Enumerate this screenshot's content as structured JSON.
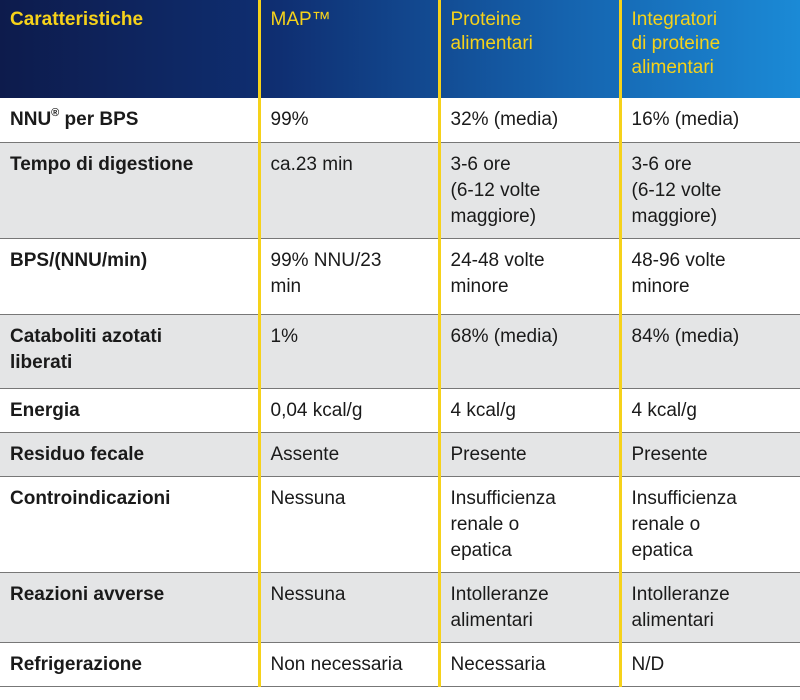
{
  "header": {
    "col1": "Caratteristiche",
    "col2": "MAP™",
    "col3": "Proteine\nalimentari",
    "col4": "Integratori\ndi proteine\nalimentari"
  },
  "rows": [
    {
      "label_main": "NNU",
      "label_sup": "®",
      "label_rest": " per BPS",
      "map": "99%",
      "proteine": "32% (media)",
      "integratori": "16% (media)"
    },
    {
      "label": "Tempo di digestione",
      "map": "ca.23 min",
      "proteine": "3-6 ore\n(6-12 volte\nmaggiore)",
      "integratori": "3-6 ore\n(6-12 volte\nmaggiore)"
    },
    {
      "label": "BPS/(NNU/min)",
      "map": "99% NNU/23\nmin",
      "proteine": "24-48 volte\nminore",
      "integratori": "48-96 volte\nminore"
    },
    {
      "label": "Cataboliti azotati\nliberati",
      "map": "1%",
      "proteine": "68% (media)",
      "integratori": "84% (media)"
    },
    {
      "label": "Energia",
      "map": "0,04 kcal/g",
      "proteine": "4 kcal/g",
      "integratori": "4 kcal/g"
    },
    {
      "label": "Residuo fecale",
      "map": "Assente",
      "proteine": "Presente",
      "integratori": "Presente"
    },
    {
      "label": "Controindicazioni",
      "map": "Nessuna",
      "proteine": "Insufficienza\nrenale o\nepatica",
      "integratori": "Insufficienza\nrenale o\nepatica"
    },
    {
      "label": "Reazioni avverse",
      "map": "Nessuna",
      "proteine": "Intolleranze\nalimentari",
      "integratori": "Intolleranze\nalimentari"
    },
    {
      "label": "Refrigerazione",
      "map": "Non necessaria",
      "proteine": "Necessaria",
      "integratori": "N/D"
    }
  ],
  "colors": {
    "header_text": "#f6d21a",
    "header_gradient_start": "#0d1b4c",
    "header_gradient_end": "#1b8ad6",
    "row_alt": "#e4e5e6",
    "divider": "#f6d21a"
  }
}
